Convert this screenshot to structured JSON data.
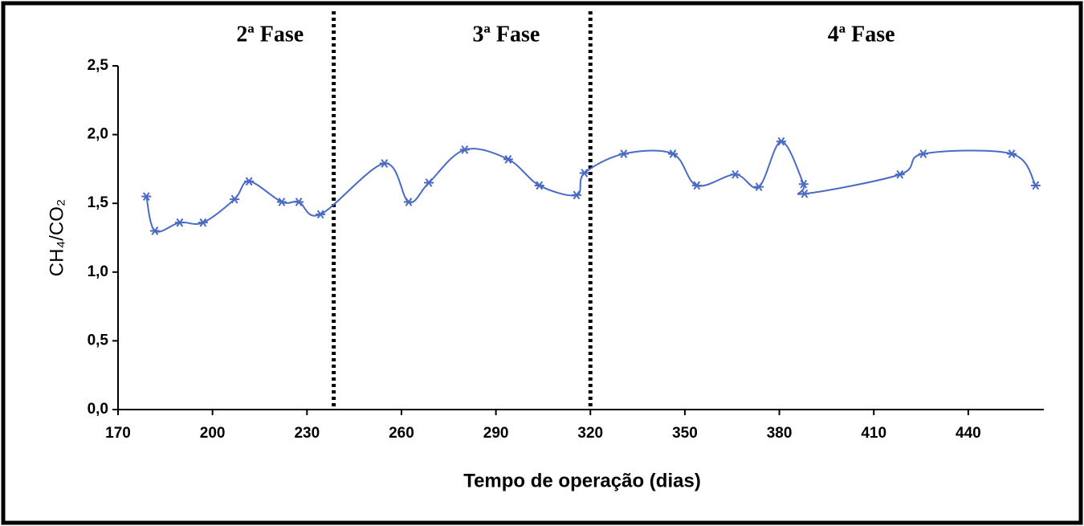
{
  "chart_data": {
    "type": "line",
    "x_label": "Tempo de operação (dias)",
    "y_label": "CH₄/CO₂",
    "phase_labels": [
      "2ª Fase",
      "3ª Fase",
      "4ª Fase"
    ],
    "phase_boundaries": [
      238.5,
      320
    ],
    "x": [
      179,
      181.7,
      189.6,
      197,
      207,
      211.6,
      222,
      227.4,
      234.3,
      254.6,
      262.3,
      268.7,
      280.1,
      293.9,
      303.8,
      315.6,
      318.1,
      330.6,
      346.2,
      353.8,
      366,
      373.5,
      380.6,
      387.7,
      388,
      418.3,
      425.7,
      453.8,
      461.4
    ],
    "series": [
      {
        "color": "#4a6bc4",
        "values": [
          1.55,
          1.3,
          1.36,
          1.36,
          1.53,
          1.66,
          1.51,
          1.51,
          1.42,
          1.79,
          1.51,
          1.65,
          1.89,
          1.82,
          1.63,
          1.56,
          1.72,
          1.86,
          1.86,
          1.63,
          1.71,
          1.62,
          1.95,
          1.64,
          1.57,
          1.71,
          1.86,
          1.86,
          1.63
        ]
      }
    ],
    "xlim": [
      170,
      464
    ],
    "xticks": [
      170,
      200,
      230,
      260,
      290,
      320,
      350,
      380,
      410,
      440
    ],
    "ylim": [
      0,
      2.5
    ],
    "yticks": [
      {
        "value": 0,
        "label": "0,0"
      },
      {
        "value": 0.5,
        "label": "0,5"
      },
      {
        "value": 1,
        "label": "1,0"
      },
      {
        "value": 1.5,
        "label": "1,5"
      },
      {
        "value": 2,
        "label": "2,0"
      },
      {
        "value": 2.5,
        "label": "2,5"
      }
    ]
  }
}
